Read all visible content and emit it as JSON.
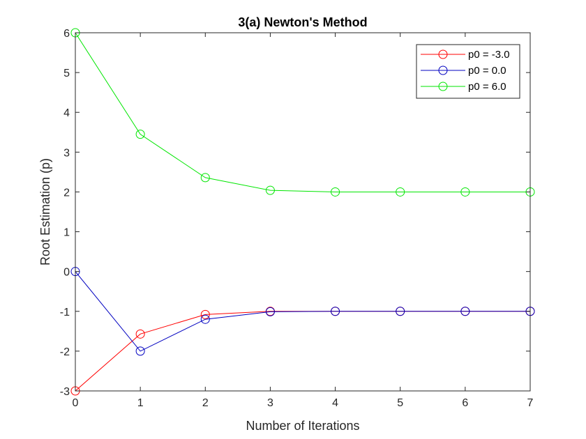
{
  "chart_data": {
    "type": "line",
    "title": "3(a) Newton's Method",
    "xlabel": "Number of Iterations",
    "ylabel": "Root Estimation (p)",
    "xlim": [
      0,
      7
    ],
    "ylim": [
      -3,
      6
    ],
    "xticks": [
      0,
      1,
      2,
      3,
      4,
      5,
      6,
      7
    ],
    "yticks": [
      -3,
      -2,
      -1,
      0,
      1,
      2,
      3,
      4,
      5,
      6
    ],
    "grid": false,
    "legend_position": "top-right",
    "marker": "circle",
    "x": [
      0,
      1,
      2,
      3,
      4,
      5,
      6,
      7
    ],
    "series": [
      {
        "name": "p0 = -3.0",
        "color": "#ff0000",
        "values": [
          -3.0,
          -1.57,
          -1.08,
          -1.0,
          -1.0,
          -1.0,
          -1.0,
          -1.0
        ]
      },
      {
        "name": "p0 = 0.0",
        "color": "#0000c0",
        "values": [
          0.0,
          -2.0,
          -1.2,
          -1.01,
          -1.0,
          -1.0,
          -1.0,
          -1.0
        ]
      },
      {
        "name": "p0 = 6.0",
        "color": "#00e600",
        "values": [
          6.0,
          3.45,
          2.36,
          2.04,
          2.0,
          2.0,
          2.0,
          2.0
        ]
      }
    ]
  }
}
